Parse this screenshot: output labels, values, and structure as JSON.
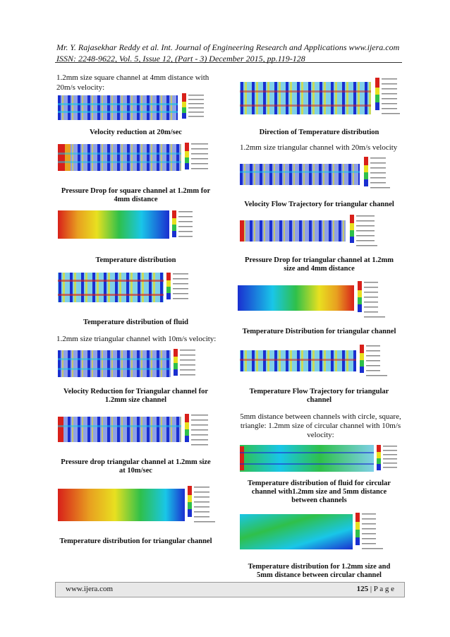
{
  "header": {
    "line1": "Mr. Y. Rajasekhar Reddy et al. Int. Journal of Engineering Research and Applications     www.ijera.com",
    "line2": "ISSN: 2248-9622, Vol. 5, Issue 12, (Part - 3) December 2015, pp.119-128"
  },
  "left": {
    "intro1": "1.2mm size square channel at 4mm distance with",
    "intro2": "20m/s velocity:",
    "cap1": "Velocity reduction at 20m/sec",
    "cap2a": "Pressure Drop for square channel at 1.2mm for",
    "cap2b": "4mm distance",
    "cap3": "Temperature distribution",
    "cap4": "Temperature distribution of fluid",
    "intro3": "1.2mm size triangular channel with 10m/s velocity:",
    "cap5a": "Velocity Reduction for Triangular channel for",
    "cap5b": "1.2mm size channel",
    "cap6a": "Pressure drop triangular channel at 1.2mm size",
    "cap6b": "at 10m/sec",
    "cap7": "Temperature distribution for triangular channel"
  },
  "right": {
    "cap1": "Direction of Temperature distribution",
    "intro1": "1.2mm size triangular channel with 20m/s velocity",
    "cap2": "Velocity Flow Trajectory for triangular channel",
    "cap3a": "Pressure Drop for triangular channel at 1.2mm",
    "cap3b": "size and 4mm distance",
    "cap4": "Temperature Distribution for triangular channel",
    "cap5a": "Temperature Flow Trajectory for triangular",
    "cap5b": "channel",
    "intro2a": "5mm distance between channels with circle, square,",
    "intro2b": "triangle: 1.2mm size of circular channel with 10m/s",
    "intro2c": "velocity:",
    "cap6a": "Temperature distribution of fluid for circular",
    "cap6b": "channel with1.2mm size and 5mm distance",
    "cap6c": "between channels",
    "cap7a": "Temperature distribution for 1.2mm size and",
    "cap7b": "5mm distance between circular channel"
  },
  "footer": {
    "site": "www.ijera.com",
    "page_num": "125",
    "page_word": " | P a g e"
  },
  "colors": {
    "blue": "#1a2fd0",
    "cyan": "#19c6e8",
    "green": "#2fc04a",
    "yellow": "#e8e020",
    "red": "#d8201a"
  }
}
